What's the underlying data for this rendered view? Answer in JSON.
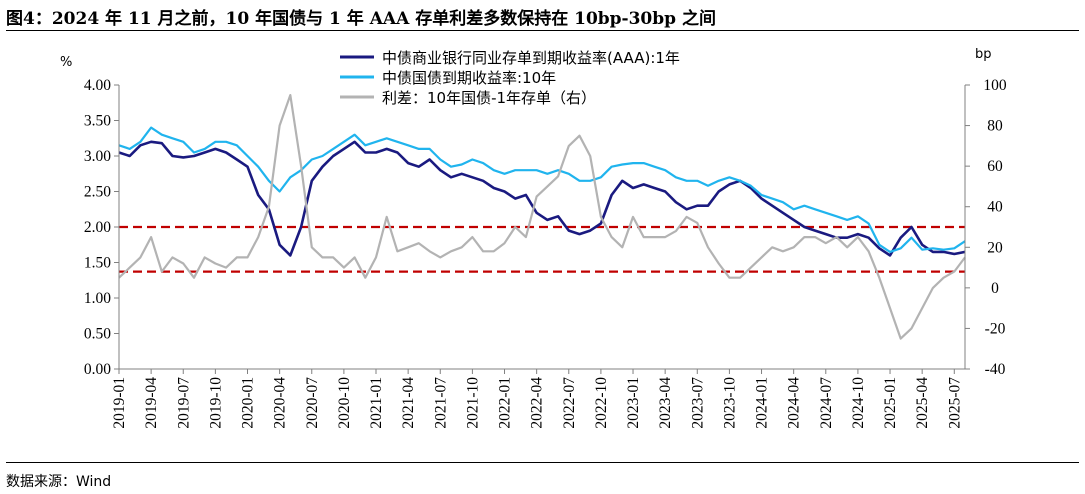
{
  "figure": {
    "title": "图4：2024 年 11 月之前，10 年国债与 1 年 AAA 存单利差多数保持在 10bp-30bp 之间",
    "source": "数据来源：Wind"
  },
  "colors": {
    "ncd_1y": "#1a1a80",
    "cgb_10y": "#20b4ee",
    "spread": "#b3b3b3",
    "ref_lines": "#c00000",
    "axis": "#808080"
  },
  "chart_data": {
    "type": "line",
    "x_ticks": [
      "2019-01",
      "2019-04",
      "2019-07",
      "2019-10",
      "2020-01",
      "2020-04",
      "2020-07",
      "2020-10",
      "2021-01",
      "2021-04",
      "2021-07",
      "2021-10",
      "2022-01",
      "2022-04",
      "2022-07",
      "2022-10",
      "2023-01",
      "2023-04",
      "2023-07",
      "2023-10",
      "2024-01",
      "2024-04",
      "2024-07",
      "2024-10",
      "2025-01",
      "2025-04",
      "2025-07"
    ],
    "x_range": [
      "2019-01",
      "2025-08"
    ],
    "y_left": {
      "unit": "%",
      "range": [
        0,
        4
      ],
      "ticks": [
        "0.00",
        "0.50",
        "1.00",
        "1.50",
        "2.00",
        "2.50",
        "3.00",
        "3.50",
        "4.00"
      ]
    },
    "y_right": {
      "unit": "bp",
      "range": [
        -40,
        100
      ],
      "ticks": [
        "-40",
        "-20",
        "0",
        "20",
        "40",
        "60",
        "80",
        "100"
      ]
    },
    "reference_lines": [
      {
        "axis": "right",
        "value": 30
      },
      {
        "axis": "right",
        "value": 8
      }
    ],
    "legend_position": "top-center",
    "series": [
      {
        "name": "中债商业银行同业存单到期收益率(AAA):1年",
        "key": "ncd_1y",
        "axis": "left",
        "points": [
          [
            "2019-01",
            3.05
          ],
          [
            "2019-02",
            3.0
          ],
          [
            "2019-03",
            3.15
          ],
          [
            "2019-04",
            3.2
          ],
          [
            "2019-05",
            3.18
          ],
          [
            "2019-06",
            3.0
          ],
          [
            "2019-07",
            2.98
          ],
          [
            "2019-08",
            3.0
          ],
          [
            "2019-09",
            3.05
          ],
          [
            "2019-10",
            3.1
          ],
          [
            "2019-11",
            3.05
          ],
          [
            "2019-12",
            2.95
          ],
          [
            "2020-01",
            2.85
          ],
          [
            "2020-02",
            2.45
          ],
          [
            "2020-03",
            2.25
          ],
          [
            "2020-04",
            1.75
          ],
          [
            "2020-05",
            1.6
          ],
          [
            "2020-06",
            2.0
          ],
          [
            "2020-07",
            2.65
          ],
          [
            "2020-08",
            2.85
          ],
          [
            "2020-09",
            3.0
          ],
          [
            "2020-10",
            3.1
          ],
          [
            "2020-11",
            3.2
          ],
          [
            "2020-12",
            3.05
          ],
          [
            "2021-01",
            3.05
          ],
          [
            "2021-02",
            3.1
          ],
          [
            "2021-03",
            3.05
          ],
          [
            "2021-04",
            2.9
          ],
          [
            "2021-05",
            2.85
          ],
          [
            "2021-06",
            2.95
          ],
          [
            "2021-07",
            2.8
          ],
          [
            "2021-08",
            2.7
          ],
          [
            "2021-09",
            2.75
          ],
          [
            "2021-10",
            2.7
          ],
          [
            "2021-11",
            2.65
          ],
          [
            "2021-12",
            2.55
          ],
          [
            "2022-01",
            2.5
          ],
          [
            "2022-02",
            2.4
          ],
          [
            "2022-03",
            2.45
          ],
          [
            "2022-04",
            2.2
          ],
          [
            "2022-05",
            2.1
          ],
          [
            "2022-06",
            2.15
          ],
          [
            "2022-07",
            1.95
          ],
          [
            "2022-08",
            1.9
          ],
          [
            "2022-09",
            1.95
          ],
          [
            "2022-10",
            2.05
          ],
          [
            "2022-11",
            2.45
          ],
          [
            "2022-12",
            2.65
          ],
          [
            "2023-01",
            2.55
          ],
          [
            "2023-02",
            2.6
          ],
          [
            "2023-03",
            2.55
          ],
          [
            "2023-04",
            2.5
          ],
          [
            "2023-05",
            2.35
          ],
          [
            "2023-06",
            2.25
          ],
          [
            "2023-07",
            2.3
          ],
          [
            "2023-08",
            2.3
          ],
          [
            "2023-09",
            2.5
          ],
          [
            "2023-10",
            2.6
          ],
          [
            "2023-11",
            2.65
          ],
          [
            "2023-12",
            2.55
          ],
          [
            "2024-01",
            2.4
          ],
          [
            "2024-02",
            2.3
          ],
          [
            "2024-03",
            2.2
          ],
          [
            "2024-04",
            2.1
          ],
          [
            "2024-05",
            2.0
          ],
          [
            "2024-06",
            1.95
          ],
          [
            "2024-07",
            1.9
          ],
          [
            "2024-08",
            1.85
          ],
          [
            "2024-09",
            1.85
          ],
          [
            "2024-10",
            1.9
          ],
          [
            "2024-11",
            1.85
          ],
          [
            "2024-12",
            1.7
          ],
          [
            "2025-01",
            1.6
          ],
          [
            "2025-02",
            1.85
          ],
          [
            "2025-03",
            2.0
          ],
          [
            "2025-04",
            1.75
          ],
          [
            "2025-05",
            1.65
          ],
          [
            "2025-06",
            1.65
          ],
          [
            "2025-07",
            1.62
          ],
          [
            "2025-08",
            1.65
          ]
        ]
      },
      {
        "name": "中债国债到期收益率:10年",
        "key": "cgb_10y",
        "axis": "left",
        "points": [
          [
            "2019-01",
            3.15
          ],
          [
            "2019-02",
            3.1
          ],
          [
            "2019-03",
            3.2
          ],
          [
            "2019-04",
            3.4
          ],
          [
            "2019-05",
            3.3
          ],
          [
            "2019-06",
            3.25
          ],
          [
            "2019-07",
            3.2
          ],
          [
            "2019-08",
            3.05
          ],
          [
            "2019-09",
            3.1
          ],
          [
            "2019-10",
            3.2
          ],
          [
            "2019-11",
            3.2
          ],
          [
            "2019-12",
            3.15
          ],
          [
            "2020-01",
            3.0
          ],
          [
            "2020-02",
            2.85
          ],
          [
            "2020-03",
            2.65
          ],
          [
            "2020-04",
            2.5
          ],
          [
            "2020-05",
            2.7
          ],
          [
            "2020-06",
            2.8
          ],
          [
            "2020-07",
            2.95
          ],
          [
            "2020-08",
            3.0
          ],
          [
            "2020-09",
            3.1
          ],
          [
            "2020-10",
            3.2
          ],
          [
            "2020-11",
            3.3
          ],
          [
            "2020-12",
            3.15
          ],
          [
            "2021-01",
            3.2
          ],
          [
            "2021-02",
            3.25
          ],
          [
            "2021-03",
            3.2
          ],
          [
            "2021-04",
            3.15
          ],
          [
            "2021-05",
            3.1
          ],
          [
            "2021-06",
            3.1
          ],
          [
            "2021-07",
            2.95
          ],
          [
            "2021-08",
            2.85
          ],
          [
            "2021-09",
            2.88
          ],
          [
            "2021-10",
            2.95
          ],
          [
            "2021-11",
            2.9
          ],
          [
            "2021-12",
            2.8
          ],
          [
            "2022-01",
            2.75
          ],
          [
            "2022-02",
            2.8
          ],
          [
            "2022-03",
            2.8
          ],
          [
            "2022-04",
            2.8
          ],
          [
            "2022-05",
            2.75
          ],
          [
            "2022-06",
            2.8
          ],
          [
            "2022-07",
            2.75
          ],
          [
            "2022-08",
            2.65
          ],
          [
            "2022-09",
            2.65
          ],
          [
            "2022-10",
            2.7
          ],
          [
            "2022-11",
            2.85
          ],
          [
            "2022-12",
            2.88
          ],
          [
            "2023-01",
            2.9
          ],
          [
            "2023-02",
            2.9
          ],
          [
            "2023-03",
            2.85
          ],
          [
            "2023-04",
            2.8
          ],
          [
            "2023-05",
            2.7
          ],
          [
            "2023-06",
            2.65
          ],
          [
            "2023-07",
            2.65
          ],
          [
            "2023-08",
            2.58
          ],
          [
            "2023-09",
            2.65
          ],
          [
            "2023-10",
            2.7
          ],
          [
            "2023-11",
            2.65
          ],
          [
            "2023-12",
            2.58
          ],
          [
            "2024-01",
            2.45
          ],
          [
            "2024-02",
            2.4
          ],
          [
            "2024-03",
            2.35
          ],
          [
            "2024-04",
            2.25
          ],
          [
            "2024-05",
            2.3
          ],
          [
            "2024-06",
            2.25
          ],
          [
            "2024-07",
            2.2
          ],
          [
            "2024-08",
            2.15
          ],
          [
            "2024-09",
            2.1
          ],
          [
            "2024-10",
            2.15
          ],
          [
            "2024-11",
            2.05
          ],
          [
            "2024-12",
            1.75
          ],
          [
            "2025-01",
            1.65
          ],
          [
            "2025-02",
            1.7
          ],
          [
            "2025-03",
            1.85
          ],
          [
            "2025-04",
            1.68
          ],
          [
            "2025-05",
            1.7
          ],
          [
            "2025-06",
            1.68
          ],
          [
            "2025-07",
            1.7
          ],
          [
            "2025-08",
            1.8
          ]
        ]
      },
      {
        "name": "利差：10年国债-1年存单（右）",
        "key": "spread",
        "axis": "right",
        "points": [
          [
            "2019-01",
            5
          ],
          [
            "2019-02",
            10
          ],
          [
            "2019-03",
            15
          ],
          [
            "2019-04",
            25
          ],
          [
            "2019-05",
            8
          ],
          [
            "2019-06",
            15
          ],
          [
            "2019-07",
            12
          ],
          [
            "2019-08",
            5
          ],
          [
            "2019-09",
            15
          ],
          [
            "2019-10",
            12
          ],
          [
            "2019-11",
            10
          ],
          [
            "2019-12",
            15
          ],
          [
            "2020-01",
            15
          ],
          [
            "2020-02",
            25
          ],
          [
            "2020-03",
            40
          ],
          [
            "2020-04",
            80
          ],
          [
            "2020-05",
            95
          ],
          [
            "2020-06",
            60
          ],
          [
            "2020-07",
            20
          ],
          [
            "2020-08",
            15
          ],
          [
            "2020-09",
            15
          ],
          [
            "2020-10",
            10
          ],
          [
            "2020-11",
            15
          ],
          [
            "2020-12",
            5
          ],
          [
            "2021-01",
            15
          ],
          [
            "2021-02",
            35
          ],
          [
            "2021-03",
            18
          ],
          [
            "2021-04",
            20
          ],
          [
            "2021-05",
            22
          ],
          [
            "2021-06",
            18
          ],
          [
            "2021-07",
            15
          ],
          [
            "2021-08",
            18
          ],
          [
            "2021-09",
            20
          ],
          [
            "2021-10",
            25
          ],
          [
            "2021-11",
            18
          ],
          [
            "2021-12",
            18
          ],
          [
            "2022-01",
            22
          ],
          [
            "2022-02",
            30
          ],
          [
            "2022-03",
            25
          ],
          [
            "2022-04",
            45
          ],
          [
            "2022-05",
            50
          ],
          [
            "2022-06",
            55
          ],
          [
            "2022-07",
            70
          ],
          [
            "2022-08",
            75
          ],
          [
            "2022-09",
            65
          ],
          [
            "2022-10",
            35
          ],
          [
            "2022-11",
            25
          ],
          [
            "2022-12",
            20
          ],
          [
            "2023-01",
            35
          ],
          [
            "2023-02",
            25
          ],
          [
            "2023-03",
            25
          ],
          [
            "2023-04",
            25
          ],
          [
            "2023-05",
            28
          ],
          [
            "2023-06",
            35
          ],
          [
            "2023-07",
            32
          ],
          [
            "2023-08",
            20
          ],
          [
            "2023-09",
            12
          ],
          [
            "2023-10",
            5
          ],
          [
            "2023-11",
            5
          ],
          [
            "2023-12",
            10
          ],
          [
            "2024-01",
            15
          ],
          [
            "2024-02",
            20
          ],
          [
            "2024-03",
            18
          ],
          [
            "2024-04",
            20
          ],
          [
            "2024-05",
            25
          ],
          [
            "2024-06",
            25
          ],
          [
            "2024-07",
            22
          ],
          [
            "2024-08",
            25
          ],
          [
            "2024-09",
            20
          ],
          [
            "2024-10",
            25
          ],
          [
            "2024-11",
            18
          ],
          [
            "2024-12",
            5
          ],
          [
            "2025-01",
            -10
          ],
          [
            "2025-02",
            -25
          ],
          [
            "2025-03",
            -20
          ],
          [
            "2025-04",
            -10
          ],
          [
            "2025-05",
            0
          ],
          [
            "2025-06",
            5
          ],
          [
            "2025-07",
            8
          ],
          [
            "2025-08",
            15
          ]
        ]
      }
    ]
  }
}
